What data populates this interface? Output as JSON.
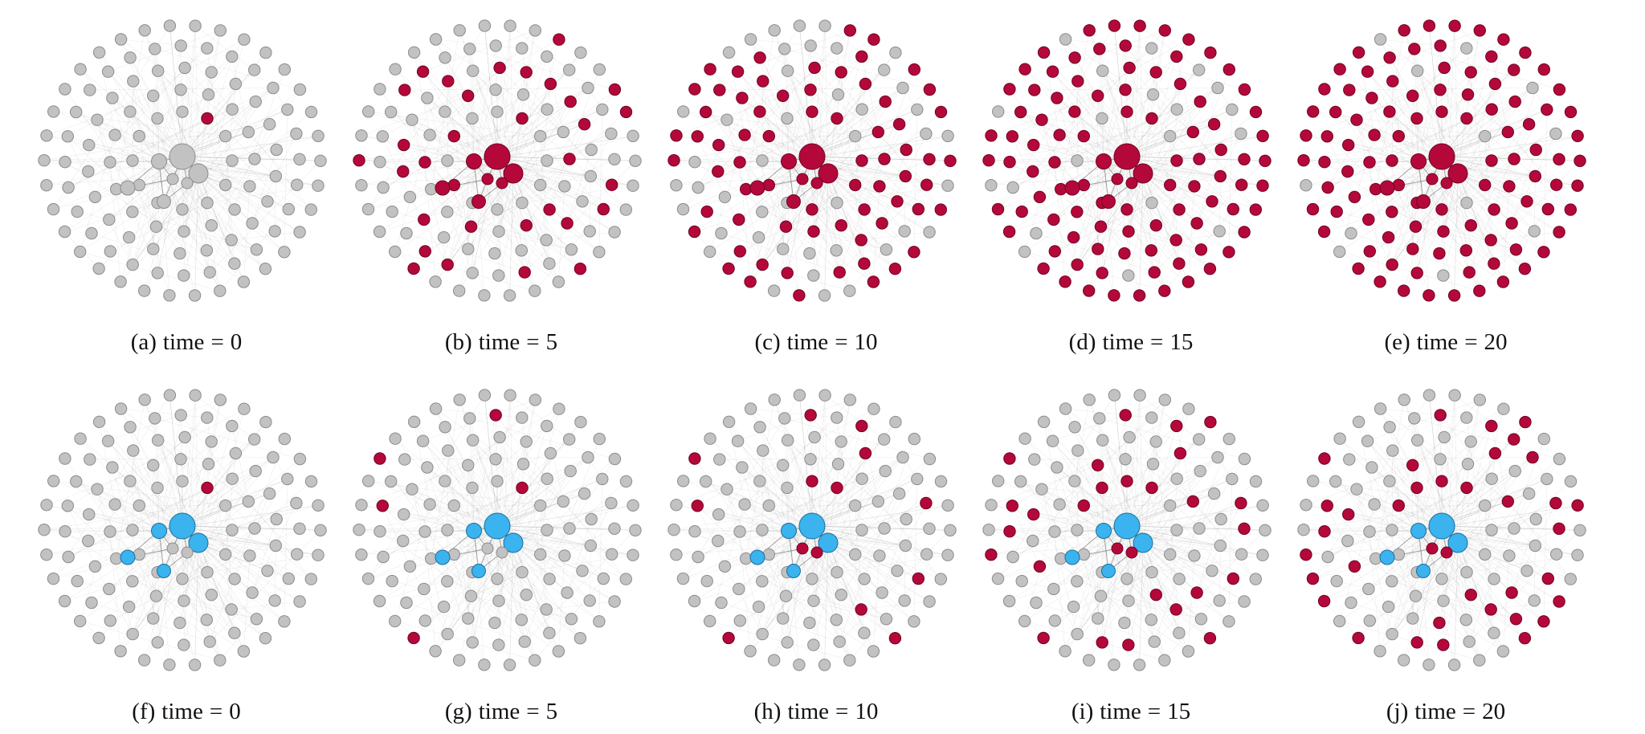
{
  "figure": {
    "panels": [
      {
        "id": "a",
        "tag": "(a)",
        "label": "time",
        "eq": "=",
        "value": "0",
        "seeded": false,
        "infected_fraction": 0.01
      },
      {
        "id": "b",
        "tag": "(b)",
        "label": "time",
        "eq": "=",
        "value": "5",
        "seeded": false,
        "infected_fraction": 0.25
      },
      {
        "id": "c",
        "tag": "(c)",
        "label": "time",
        "eq": "=",
        "value": "10",
        "seeded": false,
        "infected_fraction": 0.62
      },
      {
        "id": "d",
        "tag": "(d)",
        "label": "time",
        "eq": "=",
        "value": "15",
        "seeded": false,
        "infected_fraction": 0.85
      },
      {
        "id": "e",
        "tag": "(e)",
        "label": "time",
        "eq": "=",
        "value": "20",
        "seeded": false,
        "infected_fraction": 0.9
      },
      {
        "id": "f",
        "tag": "(f)",
        "label": "time",
        "eq": "=",
        "value": "0",
        "seeded": true,
        "infected_fraction": 0.01
      },
      {
        "id": "g",
        "tag": "(g)",
        "label": "time",
        "eq": "=",
        "value": "5",
        "seeded": true,
        "infected_fraction": 0.04
      },
      {
        "id": "h",
        "tag": "(h)",
        "label": "time",
        "eq": "=",
        "value": "10",
        "seeded": true,
        "infected_fraction": 0.14
      },
      {
        "id": "i",
        "tag": "(i)",
        "label": "time",
        "eq": "=",
        "value": "15",
        "seeded": true,
        "infected_fraction": 0.25
      },
      {
        "id": "j",
        "tag": "(j)",
        "label": "time",
        "eq": "=",
        "value": "20",
        "seeded": true,
        "infected_fraction": 0.3
      }
    ],
    "colors": {
      "susceptible": "#c2c2c2",
      "susceptible_stroke": "#8c8c8c",
      "infected": "#b5083a",
      "infected_stroke": "#6e0224",
      "protected": "#3ab3ef",
      "protected_stroke": "#1a6f9c",
      "edge": "#9a9a9a"
    }
  }
}
